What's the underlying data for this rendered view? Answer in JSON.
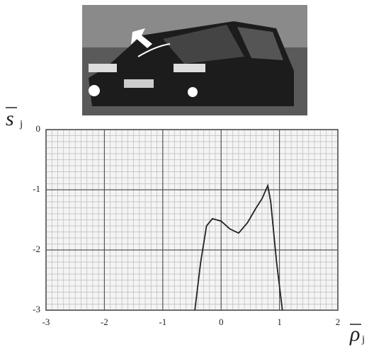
{
  "chart_data": {
    "type": "line",
    "x_label": {
      "symbol": "ρ",
      "subscript": "j"
    },
    "y_label": {
      "symbol": "s",
      "subscript": "j"
    },
    "series": [
      {
        "color": "#222222",
        "x": [
          -0.45,
          -0.35,
          -0.25,
          -0.15,
          0,
          0.15,
          0.3,
          0.45,
          0.6,
          0.7,
          0.8,
          0.85,
          0.95,
          1.05
        ],
        "values": [
          -3,
          -2.2,
          -1.6,
          -1.48,
          -1.52,
          -1.65,
          -1.72,
          -1.55,
          -1.3,
          -1.15,
          -0.93,
          -1.2,
          -2.2,
          -3
        ]
      }
    ],
    "xlim": [
      -3,
      2
    ],
    "xticks": [
      -3,
      -2,
      -1,
      0,
      1,
      2
    ],
    "ylim": [
      -3,
      0
    ],
    "yticks": [
      0,
      -1,
      -2,
      -3
    ],
    "grid": true
  }
}
